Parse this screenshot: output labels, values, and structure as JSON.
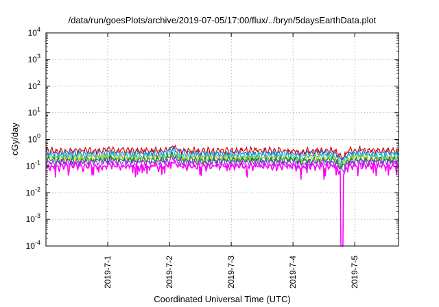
{
  "chart_data": {
    "type": "line",
    "title": "/data/run/goesPlots/archive/2019-07-05/17:00/flux/../bryn/5daysEarthData.plot",
    "xlabel": "Coordinated Universal Time (UTC)",
    "ylabel": "cGy/day",
    "yscale": "log",
    "ylim": [
      0.0001,
      10000
    ],
    "y_ticks": [
      {
        "base": "10",
        "exp": "-4",
        "value": 0.0001
      },
      {
        "base": "10",
        "exp": "-3",
        "value": 0.001
      },
      {
        "base": "10",
        "exp": "-2",
        "value": 0.01
      },
      {
        "base": "10",
        "exp": "-1",
        "value": 0.1
      },
      {
        "base": "10",
        "exp": "0",
        "value": 1
      },
      {
        "base": "10",
        "exp": "1",
        "value": 10
      },
      {
        "base": "10",
        "exp": "2",
        "value": 100
      },
      {
        "base": "10",
        "exp": "3",
        "value": 1000
      },
      {
        "base": "10",
        "exp": "4",
        "value": 10000
      }
    ],
    "xlim": [
      "2019-06-30T00:00",
      "2019-07-05T17:00"
    ],
    "x_ticks": [
      "2019-7-1",
      "2019-7-2",
      "2019-7-3",
      "2019-7-4",
      "2019-7-5"
    ],
    "grid": true,
    "legend": "none",
    "series": [
      {
        "color": "#e00000",
        "base": 0.38
      },
      {
        "color": "#2a6fd8",
        "base": 0.3
      },
      {
        "color": "#00c8c8",
        "base": 0.24
      },
      {
        "color": "#c0c000",
        "base": 0.2
      },
      {
        "color": "#0a8a3a",
        "base": 0.17
      },
      {
        "color": "#8a2be2",
        "base": 0.14
      },
      {
        "color": "#ff00ff",
        "base": 0.1
      }
    ],
    "dips": [
      {
        "date": "2019-07-01T01:00",
        "depth": 0.15
      },
      {
        "date": "2019-07-02T01:00",
        "depth": 0.22
      },
      {
        "date": "2019-07-03T02:00",
        "depth": 0.12
      },
      {
        "date": "2019-07-04T03:00",
        "depth": 0.09
      },
      {
        "date": "2019-07-04T19:00",
        "depth": 0.0001
      },
      {
        "date": "2019-07-05T02:00",
        "depth": 0.13
      }
    ]
  }
}
